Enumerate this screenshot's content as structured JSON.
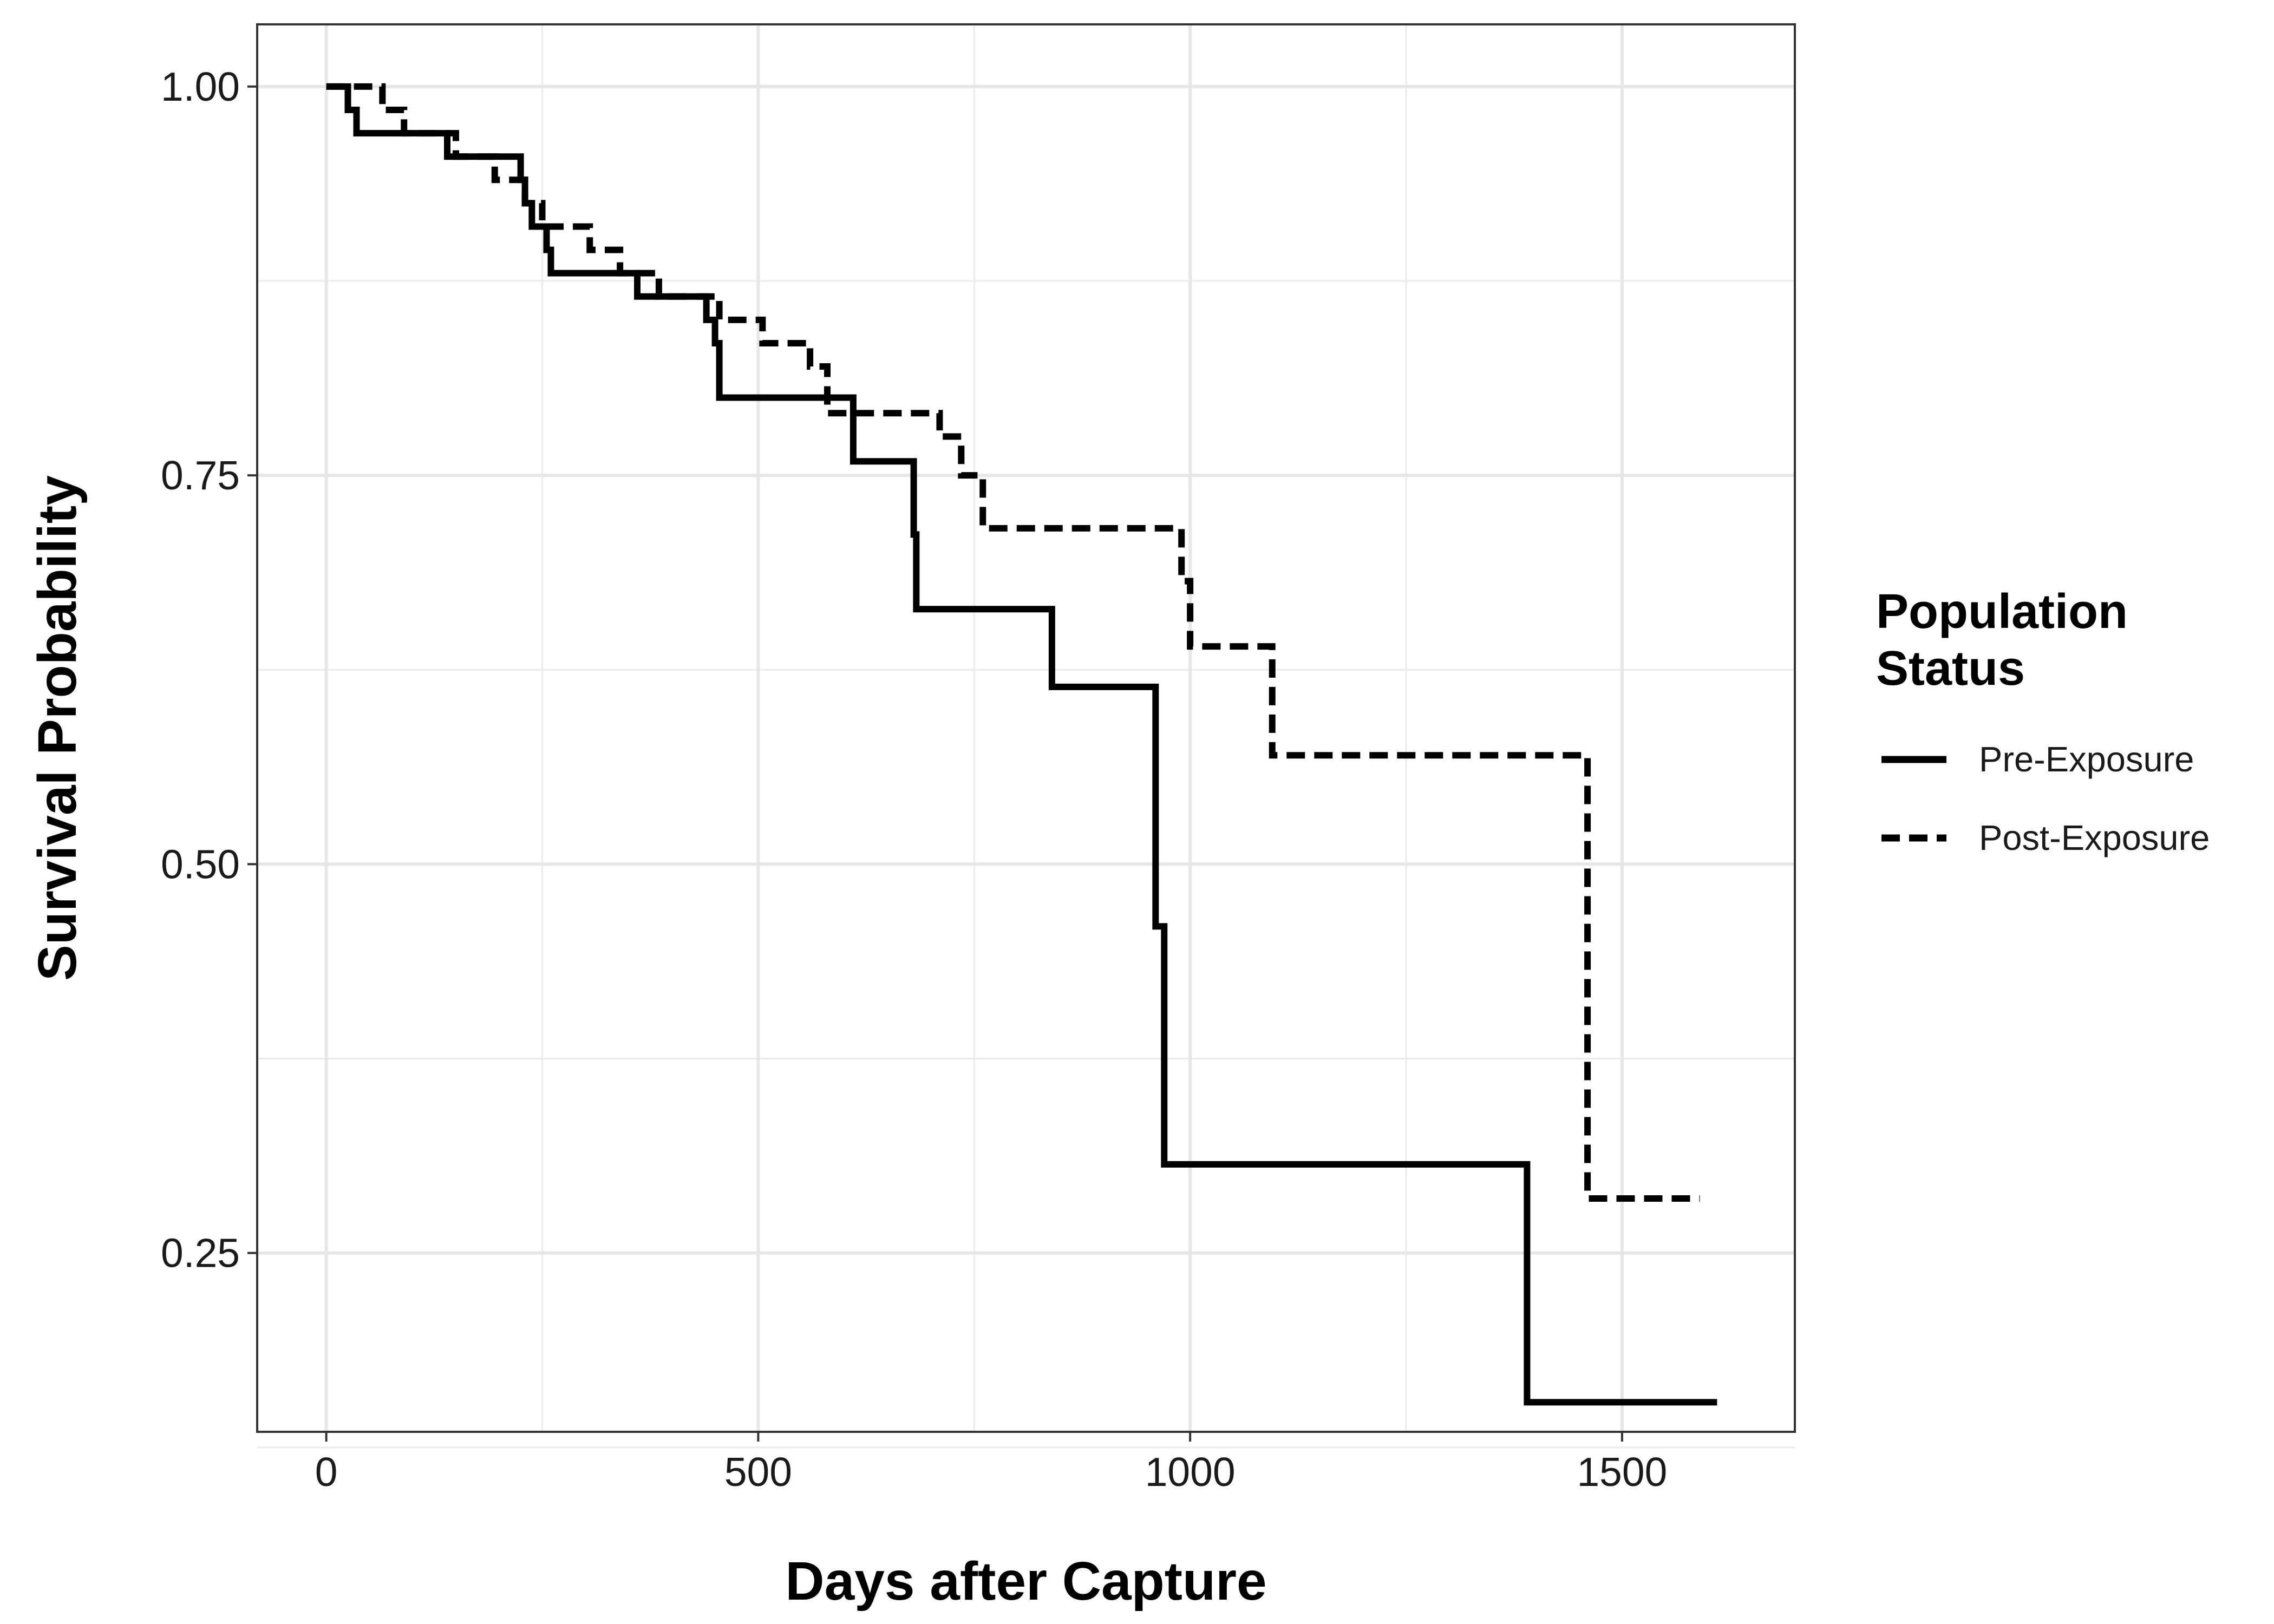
{
  "chart_data": {
    "type": "line",
    "title": "",
    "xlabel": "Days after Capture",
    "ylabel": "Survival Probability",
    "xlim": [
      -80,
      1700
    ],
    "ylim": [
      0.135,
      1.04
    ],
    "xticks": [
      0,
      500,
      1000,
      1500
    ],
    "xtick_labels": [
      "0",
      "500",
      "1000",
      "1500"
    ],
    "yticks": [
      0.25,
      0.5,
      0.75,
      1.0
    ],
    "ytick_labels": [
      "0.25",
      "0.50",
      "0.75",
      "1.00"
    ],
    "grid": true,
    "legend": {
      "title_line1": "Population",
      "title_line2": "Status",
      "position": "right"
    },
    "series": [
      {
        "name": "Pre-Exposure",
        "linestyle": "solid",
        "color": "#000000",
        "x": [
          0,
          25,
          35,
          140,
          225,
          230,
          238,
          255,
          260,
          360,
          440,
          450,
          455,
          610,
          680,
          683,
          840,
          960,
          970,
          1390,
          1610
        ],
        "y": [
          1.0,
          0.985,
          0.97,
          0.955,
          0.94,
          0.925,
          0.91,
          0.895,
          0.88,
          0.865,
          0.85,
          0.835,
          0.8,
          0.759,
          0.712,
          0.664,
          0.614,
          0.46,
          0.307,
          0.154,
          0.154
        ]
      },
      {
        "name": "Post-Exposure",
        "linestyle": "dashed",
        "color": "#000000",
        "x": [
          0,
          65,
          90,
          150,
          195,
          230,
          250,
          305,
          340,
          385,
          455,
          505,
          560,
          580,
          710,
          735,
          760,
          990,
          1000,
          1095,
          1460,
          1590
        ],
        "y": [
          1.0,
          0.985,
          0.97,
          0.955,
          0.94,
          0.925,
          0.91,
          0.895,
          0.88,
          0.865,
          0.85,
          0.835,
          0.82,
          0.79,
          0.775,
          0.75,
          0.716,
          0.682,
          0.64,
          0.57,
          0.285,
          0.285
        ]
      }
    ]
  }
}
